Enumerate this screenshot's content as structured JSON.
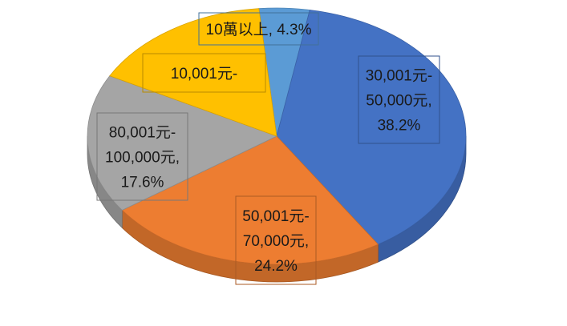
{
  "chart_data": {
    "type": "pie",
    "style": "3d",
    "slices": [
      {
        "label": "10萬以上",
        "value": 4.3,
        "color": "#5b9bd5",
        "label_lines": [
          "10萬以上, 4.3%"
        ]
      },
      {
        "label": "30,001元-50,000元",
        "value": 38.2,
        "color": "#4472c4",
        "label_lines": [
          "30,001元-",
          "50,000元,",
          "38.2%"
        ]
      },
      {
        "label": "50,001元-70,000元",
        "value": 24.2,
        "color": "#ed7d31",
        "label_lines": [
          "50,001元-",
          "70,000元,",
          "24.2%"
        ]
      },
      {
        "label": "80,001元-100,000元",
        "value": 17.6,
        "color": "#a5a5a5",
        "label_lines": [
          "80,001元-",
          "100,000元,",
          "17.6%"
        ]
      },
      {
        "label": "10,001元-",
        "value": 15.7,
        "color": "#ffc000",
        "label_lines": [
          "10,001元-"
        ]
      }
    ]
  }
}
